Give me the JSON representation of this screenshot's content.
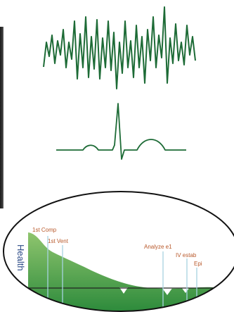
{
  "colors": {
    "waveform": "#1d6b36",
    "fill_light": "#8fc56e",
    "fill_dark": "#2c8a3b",
    "event_line": "#a7d3e0",
    "label_text": "#b8582a",
    "axis_text": "#2b4a86",
    "oval_stroke": "#111111"
  },
  "chart": {
    "ylabel": "Health",
    "events": [
      {
        "label": "1st Comp"
      },
      {
        "label": "1st Vent"
      },
      {
        "label": "Analyze e1"
      },
      {
        "label": "IV estab"
      },
      {
        "label": "Epi"
      }
    ]
  }
}
